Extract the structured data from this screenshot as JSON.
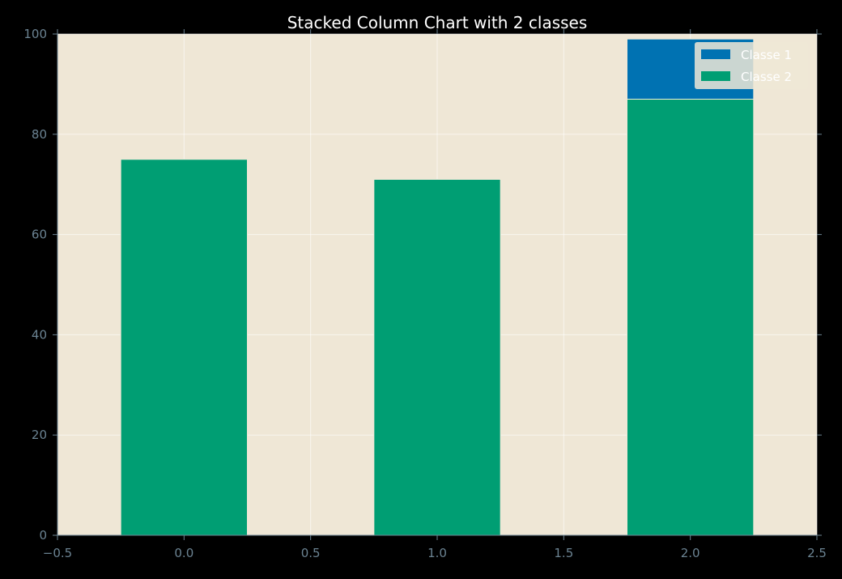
{
  "chart_data": {
    "type": "bar",
    "stacked": true,
    "title": "Stacked Column Chart with 2 classes",
    "xlabel": "",
    "ylabel": "",
    "x": [
      0,
      1,
      2
    ],
    "bar_width": 0.5,
    "xlim": [
      -0.5,
      2.5
    ],
    "ylim": [
      0,
      100
    ],
    "xticks": [
      "−0.5",
      "0.0",
      "0.5",
      "1.0",
      "1.5",
      "2.0",
      "2.5"
    ],
    "yticks": [
      "0",
      "20",
      "40",
      "60",
      "80",
      "100"
    ],
    "series": [
      {
        "name": "Classe 2",
        "values": [
          75,
          71,
          87
        ],
        "color": "#009e73"
      },
      {
        "name": "Classe 1",
        "values": [
          0,
          0,
          12
        ],
        "color": "#0072b2"
      }
    ],
    "legend_order": [
      "Classe 1",
      "Classe 2"
    ],
    "legend_position": "top-right",
    "grid": true,
    "background_color": "#efe7d6",
    "figure_color": "#000000"
  }
}
